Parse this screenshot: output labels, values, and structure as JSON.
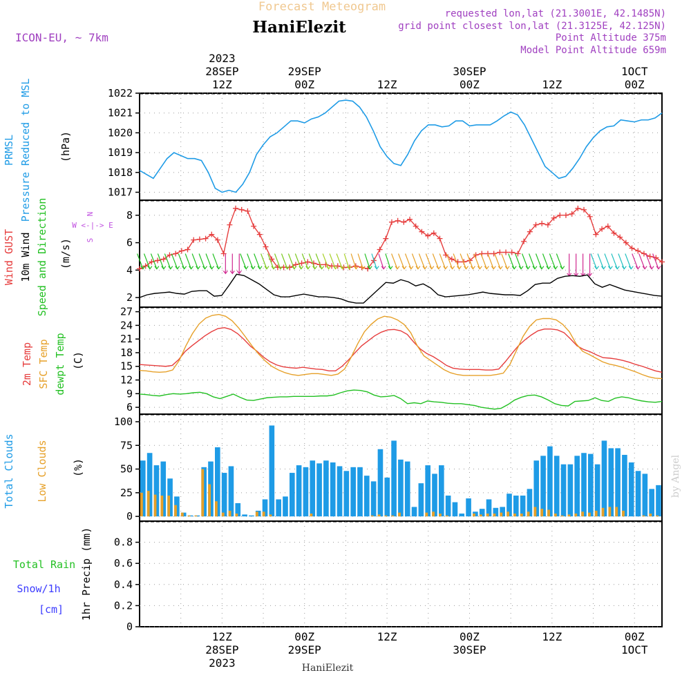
{
  "header": {
    "product_title": "Forecast Meteogram",
    "location_name": "HaniElezit",
    "model_label": "ICON-EU, ~ 7km",
    "requested_coords": "requested lon,lat (21.3001E, 42.1485N)",
    "grid_coords": "grid point closest lon,lat (21.3125E, 42.125N)",
    "point_altitude": "Point Altitude 375m",
    "model_altitude": "Model Point Altitude 659m"
  },
  "footer": {
    "location_name": "HaniElezit",
    "credit": "by Angel"
  },
  "colors": {
    "pressure": "#1e9be6",
    "gust": "#e63c3c",
    "wind": "#000000",
    "wind_label": "#22c022",
    "temp_2m": "#e63c3c",
    "temp_sfc": "#e6a028",
    "dewpoint": "#22c022",
    "total_clouds": "#1e9be6",
    "low_clouds": "#e6a028",
    "rain": "#22c022",
    "snow": "#3c3cff",
    "compass": "#c050e0",
    "header_accent": "#a040c0",
    "title_faint": "#f0c890"
  },
  "time_axis": {
    "top_labels": [
      {
        "hour": 12,
        "lines": [
          "2023",
          "28SEP",
          "12Z"
        ]
      },
      {
        "hour": 24,
        "lines": [
          "29SEP",
          "00Z"
        ]
      },
      {
        "hour": 36,
        "lines": [
          "12Z"
        ]
      },
      {
        "hour": 48,
        "lines": [
          "30SEP",
          "00Z"
        ]
      },
      {
        "hour": 60,
        "lines": [
          "12Z"
        ]
      },
      {
        "hour": 72,
        "lines": [
          "1OCT",
          "00Z"
        ]
      }
    ],
    "bottom_labels": [
      {
        "hour": 12,
        "lines": [
          "12Z",
          "28SEP",
          "2023"
        ]
      },
      {
        "hour": 24,
        "lines": [
          "00Z",
          "29SEP"
        ]
      },
      {
        "hour": 36,
        "lines": [
          "12Z"
        ]
      },
      {
        "hour": 48,
        "lines": [
          "00Z",
          "30SEP"
        ]
      },
      {
        "hour": 60,
        "lines": [
          "12Z"
        ]
      },
      {
        "hour": 72,
        "lines": [
          "00Z",
          "1OCT"
        ]
      }
    ]
  },
  "chart_data": [
    {
      "type": "line",
      "panel": "pressure",
      "label_lines": [
        {
          "text": "PRMSL",
          "color": "#1e9be6"
        },
        {
          "text": "Pressure Reduced to MSL",
          "color": "#1e9be6"
        }
      ],
      "unit": "(hPa)",
      "x": "hours since 28SEP 00Z",
      "ylim": [
        1016.6,
        1022
      ],
      "yticks": [
        1017,
        1018,
        1019,
        1020,
        1021,
        1022
      ],
      "series": [
        {
          "name": "PRMSL",
          "values": [
            1018.1,
            1017.9,
            1017.7,
            1018.2,
            1018.7,
            1019.0,
            1018.85,
            1018.7,
            1018.7,
            1018.6,
            1018.0,
            1017.2,
            1017.0,
            1017.1,
            1017.0,
            1017.4,
            1018.0,
            1018.9,
            1019.4,
            1019.8,
            1020.0,
            1020.3,
            1020.6,
            1020.6,
            1020.5,
            1020.7,
            1020.8,
            1021.0,
            1021.3,
            1021.6,
            1021.65,
            1021.6,
            1021.3,
            1020.8,
            1020.1,
            1019.3,
            1018.8,
            1018.45,
            1018.35,
            1018.9,
            1019.6,
            1020.1,
            1020.4,
            1020.4,
            1020.3,
            1020.35,
            1020.6,
            1020.6,
            1020.35,
            1020.4,
            1020.4,
            1020.4,
            1020.6,
            1020.85,
            1021.05,
            1020.9,
            1020.4,
            1019.7,
            1019.0,
            1018.3,
            1018.0,
            1017.7,
            1017.8,
            1018.2,
            1018.7,
            1019.3,
            1019.75,
            1020.1,
            1020.3,
            1020.35,
            1020.65,
            1020.6,
            1020.55,
            1020.65,
            1020.65,
            1020.75,
            1021.0
          ]
        }
      ]
    },
    {
      "type": "line",
      "panel": "wind",
      "label_lines": [
        {
          "text": "Wind GUST",
          "color": "#e63c3c"
        },
        {
          "text": "10m Wind",
          "color": "#000000"
        },
        {
          "text": "Speed and Direction",
          "color": "#22c022"
        }
      ],
      "unit": "(m/s)",
      "compass": [
        "N",
        "W <-|-> E",
        "S"
      ],
      "ylim": [
        1.3,
        9.1
      ],
      "yticks": [
        2,
        4,
        6,
        8
      ],
      "series": [
        {
          "name": "Wind GUST",
          "values": [
            4.1,
            4.3,
            4.6,
            4.7,
            4.8,
            5.1,
            5.2,
            5.4,
            5.5,
            6.2,
            6.25,
            6.3,
            6.6,
            6.2,
            5.2,
            7.3,
            8.5,
            8.4,
            8.3,
            7.2,
            6.6,
            5.7,
            4.8,
            4.2,
            4.2,
            4.2,
            4.4,
            4.5,
            4.6,
            4.5,
            4.4,
            4.4,
            4.3,
            4.3,
            4.2,
            4.2,
            4.3,
            4.2,
            4.1,
            4.7,
            5.5,
            6.3,
            7.5,
            7.6,
            7.5,
            7.7,
            7.2,
            6.8,
            6.5,
            6.7,
            6.3,
            5.1,
            4.8,
            4.6,
            4.6,
            4.7,
            5.1,
            5.2,
            5.2,
            5.2,
            5.3,
            5.3,
            5.3,
            5.2,
            6.1,
            6.8,
            7.3,
            7.4,
            7.3,
            7.8,
            8.0,
            8.0,
            8.1,
            8.5,
            8.4,
            7.9,
            6.6,
            7.0,
            7.2,
            6.7,
            6.4,
            6.0,
            5.6,
            5.4,
            5.2,
            5.0,
            4.9,
            4.6
          ]
        },
        {
          "name": "10m Wind",
          "values": [
            2.0,
            2.2,
            2.3,
            2.35,
            2.4,
            2.3,
            2.25,
            2.45,
            2.5,
            2.5,
            2.1,
            2.15,
            2.9,
            3.7,
            3.6,
            3.3,
            3.0,
            2.6,
            2.2,
            2.05,
            2.05,
            2.15,
            2.25,
            2.15,
            2.05,
            2.05,
            2.0,
            1.9,
            1.7,
            1.6,
            1.6,
            2.1,
            2.6,
            3.1,
            3.05,
            3.3,
            3.15,
            2.85,
            3.0,
            2.7,
            2.2,
            2.05,
            2.1,
            2.15,
            2.2,
            2.3,
            2.4,
            2.3,
            2.25,
            2.2,
            2.2,
            2.15,
            2.5,
            2.95,
            3.05,
            3.05,
            3.4,
            3.55,
            3.6,
            3.55,
            3.65,
            3.0,
            2.75,
            2.95,
            2.75,
            2.55,
            2.45,
            2.35,
            2.25,
            2.15,
            2.1
          ]
        }
      ],
      "direction_flag_colors": [
        "#22c022",
        "#22c022",
        "#7ac81e",
        "#a8d028",
        "#e6a028",
        "#e6a028",
        "#22c022",
        "#22c0c0",
        "#d02890"
      ]
    },
    {
      "type": "line",
      "panel": "temperature",
      "label_lines": [
        {
          "text": "2m Temp",
          "color": "#e63c3c"
        },
        {
          "text": "SFC Temp",
          "color": "#e6a028"
        },
        {
          "text": "dewpt Temp",
          "color": "#22c022"
        }
      ],
      "unit": "(C)",
      "ylim": [
        4.5,
        28.0
      ],
      "yticks": [
        6,
        9,
        12,
        15,
        18,
        21,
        24,
        27
      ],
      "series": [
        {
          "name": "2m Temp",
          "values": [
            15.4,
            15.3,
            15.2,
            15.1,
            15.0,
            15.2,
            16.5,
            18.3,
            19.5,
            20.6,
            21.7,
            22.6,
            23.3,
            23.5,
            23.1,
            22.2,
            20.9,
            19.4,
            18.3,
            17.0,
            16.0,
            15.3,
            14.9,
            14.7,
            14.6,
            14.8,
            14.6,
            14.4,
            14.3,
            14.0,
            14.0,
            15.0,
            16.4,
            18.0,
            19.5,
            20.6,
            21.7,
            22.5,
            23.0,
            23.1,
            22.8,
            22.0,
            20.3,
            18.8,
            17.8,
            17.1,
            16.2,
            15.2,
            14.6,
            14.4,
            14.3,
            14.3,
            14.3,
            14.2,
            14.2,
            14.4,
            16.0,
            17.8,
            19.5,
            20.8,
            21.9,
            22.8,
            23.2,
            23.2,
            23.0,
            22.4,
            21.0,
            19.5,
            18.7,
            18.2,
            17.5,
            16.9,
            16.8,
            16.6,
            16.3,
            15.9,
            15.4,
            15.0,
            14.5,
            14.0,
            13.7
          ]
        },
        {
          "name": "SFC Temp",
          "values": [
            14.1,
            14.0,
            13.8,
            13.7,
            13.8,
            14.2,
            16.3,
            19.5,
            22.2,
            24.3,
            25.6,
            26.2,
            26.4,
            26.0,
            25.0,
            23.4,
            21.5,
            19.5,
            17.7,
            16.2,
            15.0,
            14.2,
            13.6,
            13.2,
            13.0,
            13.2,
            13.4,
            13.4,
            13.2,
            13.0,
            13.3,
            14.4,
            17.0,
            20.0,
            22.6,
            24.2,
            25.4,
            26.0,
            25.8,
            25.2,
            24.2,
            22.4,
            19.5,
            17.3,
            16.3,
            15.3,
            14.3,
            13.6,
            13.2,
            13.0,
            13.0,
            13.0,
            13.0,
            13.0,
            13.2,
            13.5,
            15.4,
            18.5,
            21.6,
            23.8,
            25.2,
            25.5,
            25.5,
            25.2,
            24.2,
            22.6,
            20.0,
            18.3,
            17.6,
            16.8,
            16.0,
            15.5,
            15.2,
            14.8,
            14.3,
            13.8,
            13.2,
            12.7,
            12.4,
            12.3
          ]
        },
        {
          "name": "dewpt Temp",
          "values": [
            8.9,
            8.8,
            8.6,
            8.5,
            8.8,
            9.0,
            8.9,
            9.0,
            9.2,
            9.3,
            9.0,
            8.3,
            7.9,
            8.4,
            8.9,
            8.2,
            7.6,
            7.5,
            7.8,
            8.1,
            8.2,
            8.3,
            8.3,
            8.4,
            8.4,
            8.4,
            8.4,
            8.5,
            8.5,
            8.7,
            9.2,
            9.6,
            9.8,
            9.7,
            9.4,
            8.7,
            8.3,
            8.4,
            8.6,
            7.9,
            6.8,
            7.0,
            6.8,
            7.4,
            7.2,
            7.1,
            6.9,
            6.8,
            6.8,
            6.6,
            6.4,
            6.0,
            5.8,
            5.6,
            5.8,
            6.6,
            7.6,
            8.2,
            8.6,
            8.7,
            8.3,
            7.6,
            6.8,
            6.4,
            6.3,
            7.3,
            7.4,
            7.5,
            8.1,
            7.5,
            7.3,
            8.0,
            8.3,
            8.1,
            7.7,
            7.4,
            7.2,
            7.1,
            7.3
          ]
        }
      ]
    },
    {
      "type": "bar",
      "panel": "clouds",
      "label_lines": [
        {
          "text": "Total Clouds",
          "color": "#1e9be6"
        },
        {
          "text": "Low Clouds",
          "color": "#e6a028"
        }
      ],
      "unit": "(%)",
      "ylim": [
        -5,
        108
      ],
      "yticks": [
        0,
        25,
        50,
        75,
        100
      ],
      "series": [
        {
          "name": "Total Clouds",
          "values": [
            59,
            67,
            54,
            58,
            40,
            21,
            4,
            1,
            1,
            52,
            58,
            73,
            46,
            53,
            14,
            2,
            1,
            6,
            18,
            96,
            18,
            21,
            46,
            54,
            52,
            59,
            56,
            59,
            57,
            53,
            48,
            52,
            52,
            43,
            37,
            71,
            41,
            80,
            60,
            58,
            10,
            35,
            54,
            45,
            54,
            22,
            15,
            3,
            19,
            5,
            8,
            18,
            9,
            10,
            24,
            22,
            22,
            29,
            59,
            64,
            74,
            64,
            55,
            55,
            64,
            67,
            66,
            55,
            80,
            72,
            72,
            65,
            57,
            48,
            45,
            29,
            33
          ]
        },
        {
          "name": "Low Clouds",
          "values": [
            25,
            27,
            23,
            22,
            22,
            12,
            4,
            1,
            1,
            50,
            34,
            16,
            4,
            6,
            3,
            0,
            0,
            5,
            5,
            2,
            0,
            0,
            0,
            0,
            0,
            3,
            0,
            0,
            0,
            0,
            0,
            0,
            0,
            0,
            1,
            2,
            1,
            1,
            4,
            0,
            0,
            0,
            4,
            5,
            3,
            1,
            0,
            0,
            0,
            3,
            2,
            3,
            3,
            4,
            5,
            3,
            3,
            5,
            10,
            8,
            7,
            3,
            1,
            2,
            3,
            5,
            4,
            6,
            9,
            10,
            10,
            6,
            0,
            0,
            1,
            3,
            1
          ]
        }
      ]
    },
    {
      "type": "bar",
      "panel": "precip",
      "label_lines": [
        {
          "text": "Total  Rain",
          "color": "#22c022"
        },
        {
          "text": "Snow/1h",
          "color": "#3c3cff"
        },
        {
          "text": "[cm]",
          "color": "#3c3cff"
        }
      ],
      "unit": "1hr Precip (mm)",
      "ylim": [
        0,
        1.0
      ],
      "yticks": [
        0,
        0.2,
        0.4,
        0.6,
        0.8
      ],
      "series": [
        {
          "name": "Total Rain",
          "values": [
            0
          ]
        }
      ]
    }
  ]
}
